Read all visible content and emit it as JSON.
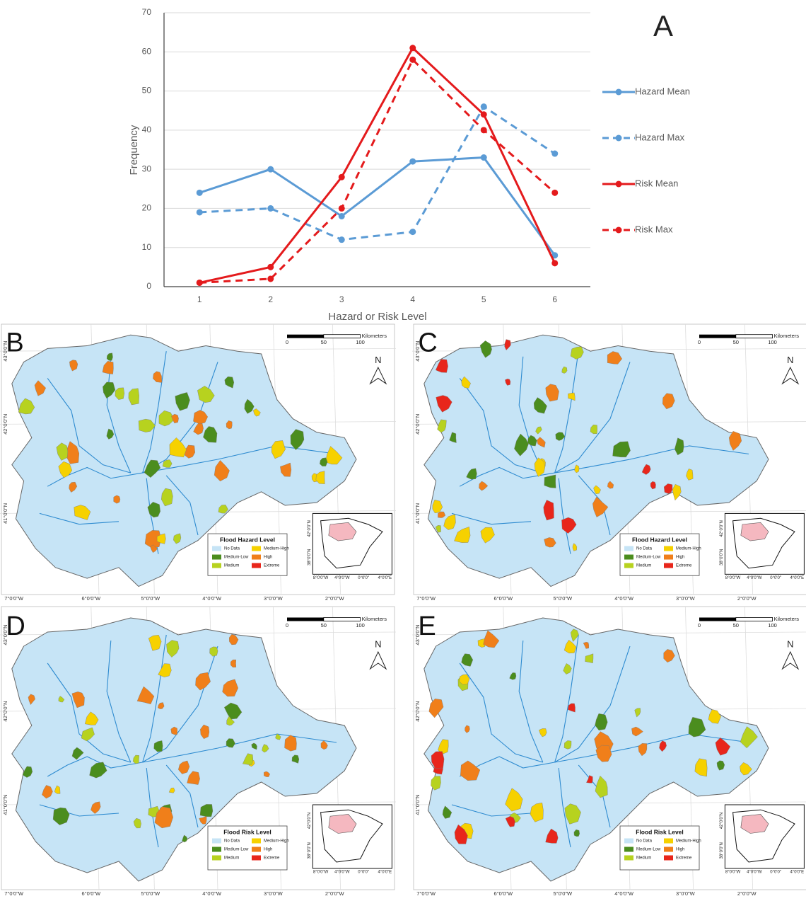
{
  "chart_data": {
    "type": "line",
    "annotation": "A",
    "xlabel": "Hazard or Risk Level",
    "ylabel": "Frequency",
    "categories": [
      "1",
      "2",
      "3",
      "4",
      "5",
      "6"
    ],
    "series": [
      {
        "name": "Hazard Mean",
        "color": "#5b9bd5",
        "dashed": false,
        "values": [
          24,
          30,
          18,
          32,
          33,
          8
        ]
      },
      {
        "name": "Hazard Max",
        "color": "#5b9bd5",
        "dashed": true,
        "values": [
          19,
          20,
          12,
          14,
          46,
          34
        ]
      },
      {
        "name": "Risk Mean",
        "color": "#e41a1c",
        "dashed": false,
        "values": [
          1,
          5,
          28,
          61,
          44,
          6
        ]
      },
      {
        "name": "Risk Max",
        "color": "#e41a1c",
        "dashed": true,
        "values": [
          1,
          2,
          20,
          58,
          40,
          24
        ]
      }
    ],
    "ylim": [
      0,
      70
    ],
    "yticks": [
      0,
      10,
      20,
      30,
      40,
      50,
      60,
      70
    ],
    "grid": true,
    "legend": "right"
  },
  "maps": {
    "panels": [
      {
        "label": "B",
        "legend_title": "Flood Hazard Level"
      },
      {
        "label": "C",
        "legend_title": "Flood Hazard Level"
      },
      {
        "label": "D",
        "legend_title": "Flood Risk Level"
      },
      {
        "label": "E",
        "legend_title": "Flood Risk Level"
      }
    ],
    "legend_items": [
      {
        "label": "No Data",
        "color": "#c6e4f6"
      },
      {
        "label": "Medium-Low",
        "color": "#4b8d1e"
      },
      {
        "label": "Medium",
        "color": "#b7d21f"
      },
      {
        "label": "Medium-High",
        "color": "#f6d100"
      },
      {
        "label": "High",
        "color": "#f07f1a"
      },
      {
        "label": "Extreme",
        "color": "#e8261b"
      }
    ],
    "lat_labels": [
      "43°0'0\"N",
      "42°0'0\"N",
      "41°0'0\"N"
    ],
    "lon_labels": [
      "7°0'0\"W",
      "6°0'0\"W",
      "5°0'0\"W",
      "4°0'0\"W",
      "3°0'0\"W",
      "2°0'0\"W"
    ],
    "scale_labels": [
      "0",
      "50",
      "100"
    ],
    "scale_unit": "Kilometers",
    "north": "N",
    "inset_lat": [
      "42°0'0\"N",
      "38°0'0\"N"
    ],
    "inset_lon": [
      "8°0'0\"W",
      "4°0'0\"W",
      "0°0'0\"",
      "4°0'0\"E"
    ]
  }
}
